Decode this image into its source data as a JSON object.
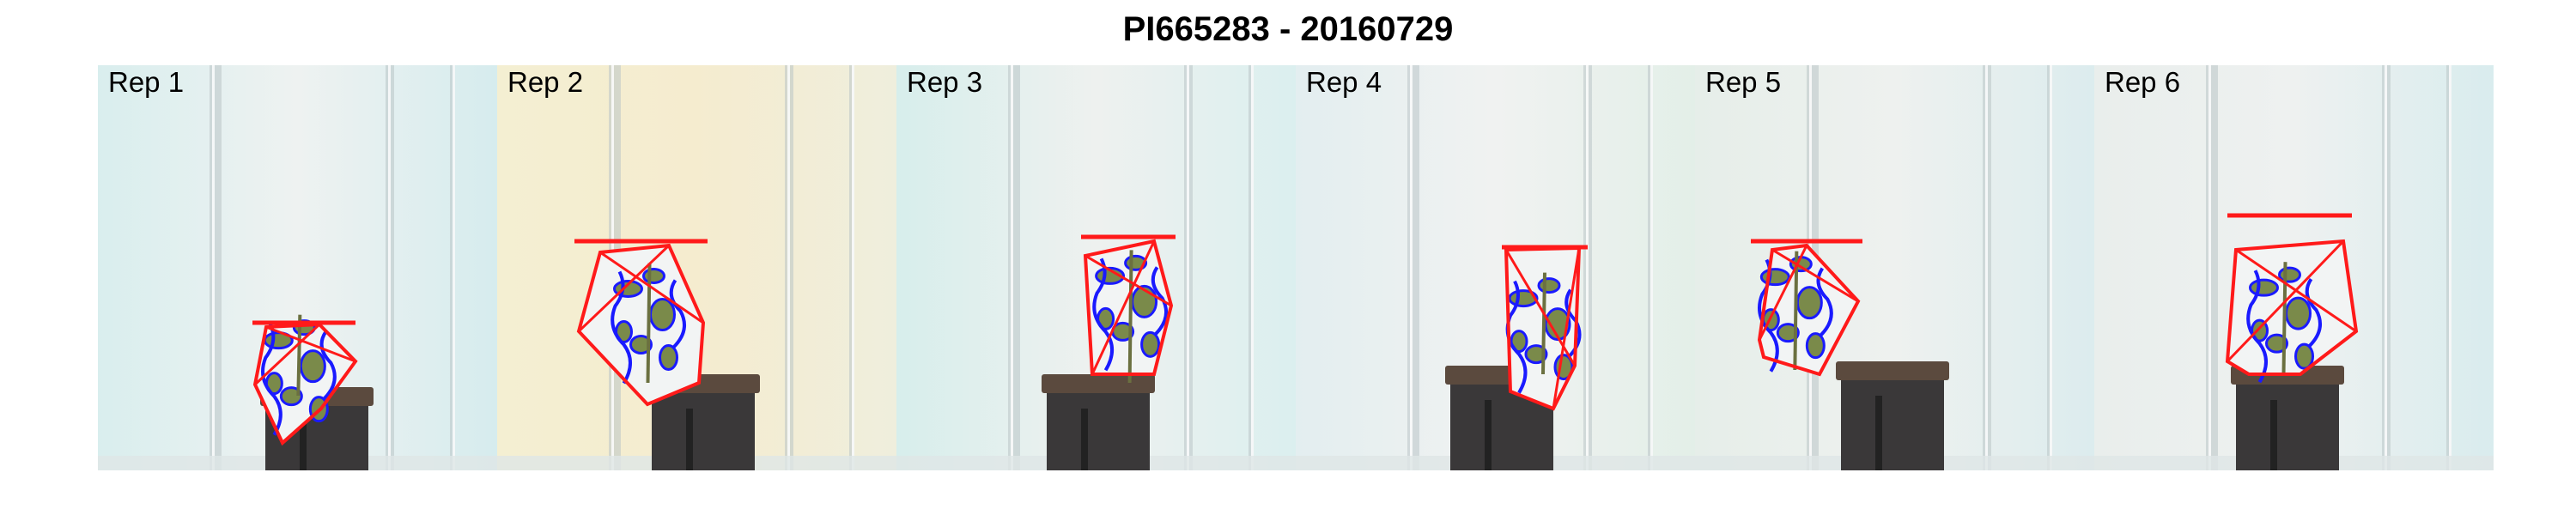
{
  "title": "PI665283 - 20160729",
  "panels": [
    {
      "label": "Rep 1",
      "bg_left": "#d9eeee",
      "bg_mid": "#eef2f1",
      "bg_right": "#d6ecee"
    },
    {
      "label": "Rep 2",
      "bg_left": "#f4efd2",
      "bg_mid": "#f5eccf",
      "bg_right": "#efeedd"
    },
    {
      "label": "Rep 3",
      "bg_left": "#d7eeec",
      "bg_mid": "#eef1ef",
      "bg_right": "#dbefef"
    },
    {
      "label": "Rep 4",
      "bg_left": "#e3eef0",
      "bg_mid": "#f0f2f1",
      "bg_right": "#e3efe8"
    },
    {
      "label": "Rep 5",
      "bg_left": "#e6eee9",
      "bg_mid": "#eef1ef",
      "bg_right": "#dcecee"
    },
    {
      "label": "Rep 6",
      "bg_left": "#e9eeec",
      "bg_mid": "#eef1f0",
      "bg_right": "#d9ecee"
    }
  ],
  "colors": {
    "hull": "#ff1a1a",
    "outline": "#1a1aff",
    "leaf": "#7a8a4a",
    "pot": "#3a3839",
    "soil": "#5b4a3e",
    "pillar": "#b9c4c6"
  }
}
